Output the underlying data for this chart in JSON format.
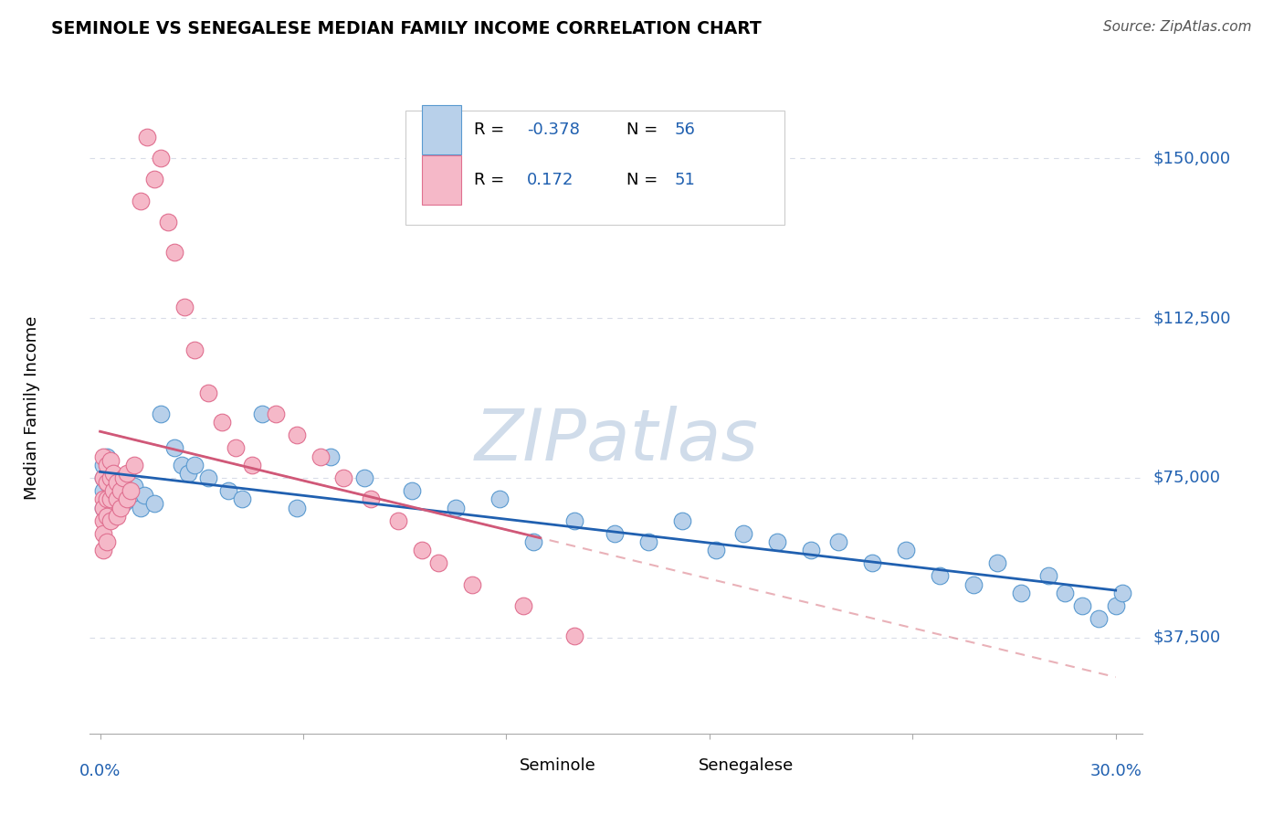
{
  "title": "SEMINOLE VS SENEGALESE MEDIAN FAMILY INCOME CORRELATION CHART",
  "source": "Source: ZipAtlas.com",
  "ylabel": "Median Family Income",
  "yticks": [
    37500,
    75000,
    112500,
    150000
  ],
  "ytick_labels": [
    "$37,500",
    "$75,000",
    "$112,500",
    "$150,000"
  ],
  "ylim": [
    15000,
    168000
  ],
  "xlim": [
    -0.003,
    0.308
  ],
  "xlim_plot": [
    0.0,
    0.3
  ],
  "legend_R_blue": "-0.378",
  "legend_N_blue": "56",
  "legend_R_pink": "0.172",
  "legend_N_pink": "51",
  "blue_scatter_color": "#b8d0ea",
  "blue_scatter_edge": "#5a9ad0",
  "pink_scatter_color": "#f5b8c8",
  "pink_scatter_edge": "#e07090",
  "blue_line_color": "#2060b0",
  "pink_line_color": "#d05878",
  "pink_dash_color": "#e0909a",
  "grid_color": "#d8dce8",
  "background_color": "#ffffff",
  "watermark_color": "#d0dcea",
  "seminole_x": [
    0.001,
    0.001,
    0.001,
    0.001,
    0.002,
    0.002,
    0.003,
    0.003,
    0.004,
    0.005,
    0.006,
    0.007,
    0.007,
    0.008,
    0.009,
    0.01,
    0.012,
    0.013,
    0.016,
    0.018,
    0.022,
    0.024,
    0.026,
    0.028,
    0.032,
    0.038,
    0.042,
    0.048,
    0.058,
    0.068,
    0.078,
    0.092,
    0.105,
    0.118,
    0.128,
    0.14,
    0.152,
    0.162,
    0.172,
    0.182,
    0.19,
    0.2,
    0.21,
    0.218,
    0.228,
    0.238,
    0.248,
    0.258,
    0.265,
    0.272,
    0.28,
    0.285,
    0.29,
    0.295,
    0.3,
    0.302
  ],
  "seminole_y": [
    75000,
    78000,
    72000,
    68000,
    80000,
    74000,
    76000,
    70000,
    72000,
    75000,
    73000,
    71000,
    69000,
    74000,
    70000,
    73000,
    68000,
    71000,
    69000,
    90000,
    82000,
    78000,
    76000,
    78000,
    75000,
    72000,
    70000,
    90000,
    68000,
    80000,
    75000,
    72000,
    68000,
    70000,
    60000,
    65000,
    62000,
    60000,
    65000,
    58000,
    62000,
    60000,
    58000,
    60000,
    55000,
    58000,
    52000,
    50000,
    55000,
    48000,
    52000,
    48000,
    45000,
    42000,
    45000,
    48000
  ],
  "senegalese_x": [
    0.001,
    0.001,
    0.001,
    0.001,
    0.001,
    0.001,
    0.001,
    0.002,
    0.002,
    0.002,
    0.002,
    0.002,
    0.003,
    0.003,
    0.003,
    0.003,
    0.004,
    0.004,
    0.005,
    0.005,
    0.005,
    0.006,
    0.006,
    0.007,
    0.008,
    0.008,
    0.009,
    0.01,
    0.012,
    0.014,
    0.016,
    0.018,
    0.02,
    0.022,
    0.025,
    0.028,
    0.032,
    0.036,
    0.04,
    0.045,
    0.052,
    0.058,
    0.065,
    0.072,
    0.08,
    0.088,
    0.095,
    0.1,
    0.11,
    0.125,
    0.14
  ],
  "senegalese_y": [
    80000,
    75000,
    70000,
    68000,
    65000,
    62000,
    58000,
    78000,
    74000,
    70000,
    66000,
    60000,
    79000,
    75000,
    70000,
    65000,
    76000,
    72000,
    74000,
    70000,
    66000,
    72000,
    68000,
    75000,
    76000,
    70000,
    72000,
    78000,
    140000,
    155000,
    145000,
    150000,
    135000,
    128000,
    115000,
    105000,
    95000,
    88000,
    82000,
    78000,
    90000,
    85000,
    80000,
    75000,
    70000,
    65000,
    58000,
    55000,
    50000,
    45000,
    38000
  ]
}
